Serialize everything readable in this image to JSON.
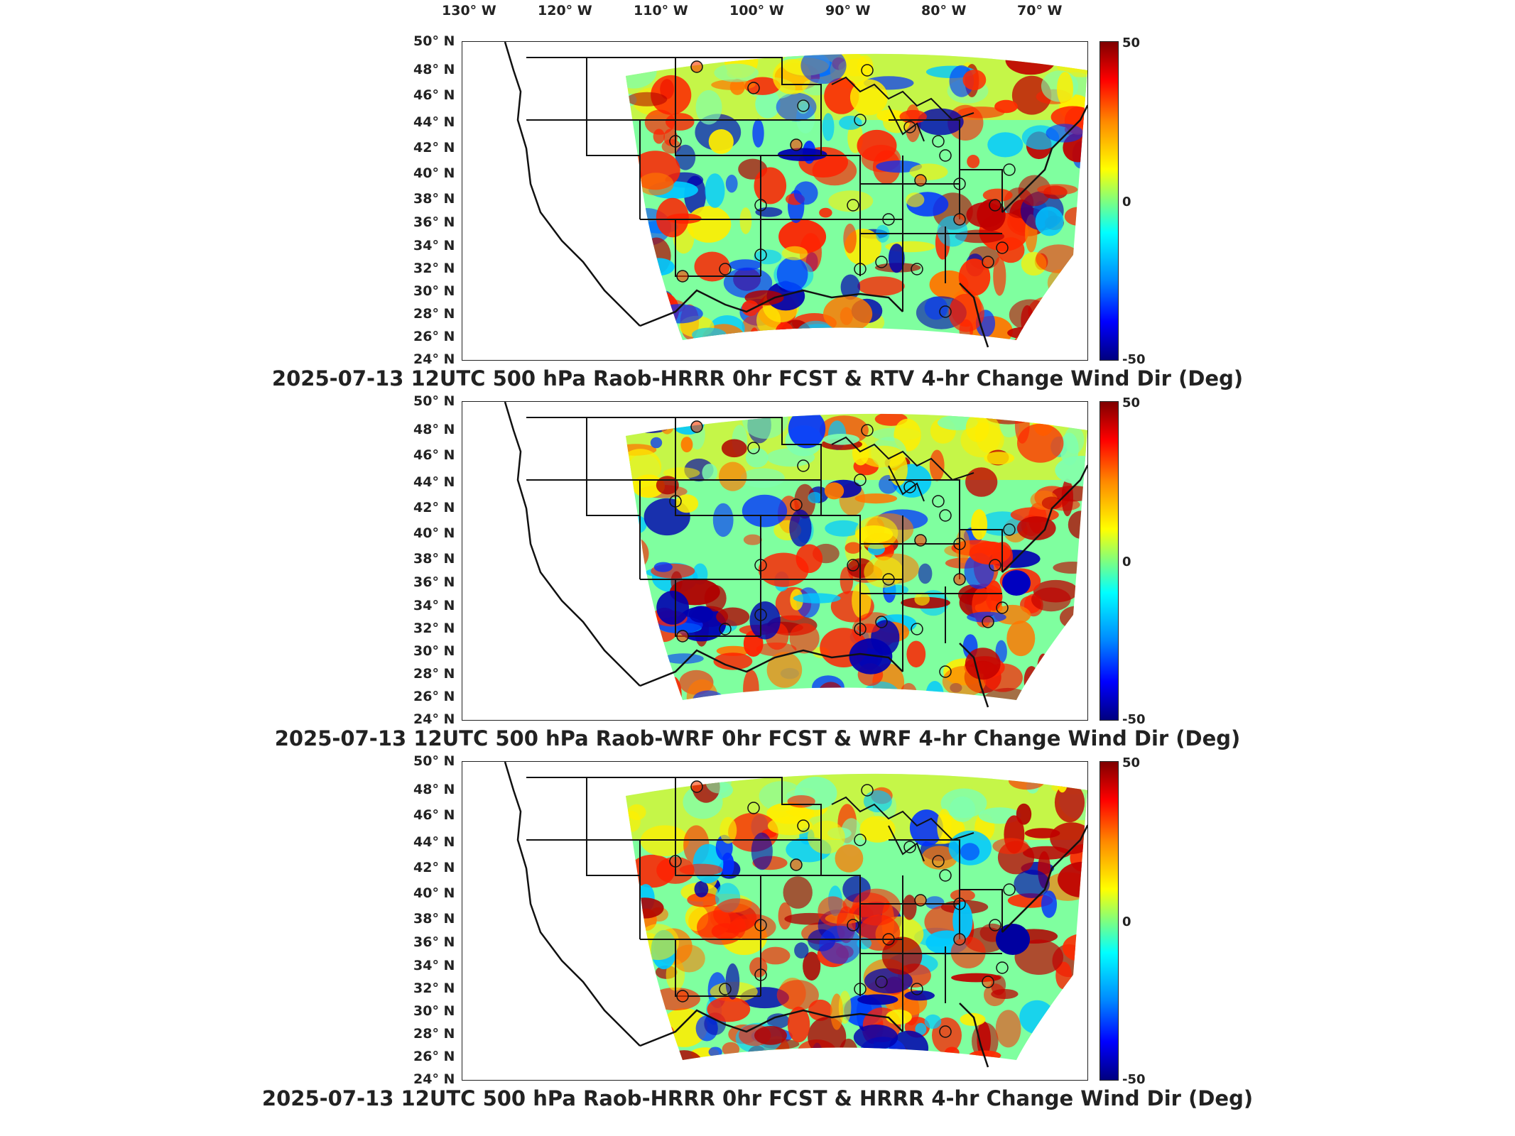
{
  "lon_labels": [
    "130° W",
    "120° W",
    "110° W",
    "100° W",
    "90° W",
    "80° W",
    "70° W"
  ],
  "lat_labels": [
    "50° N",
    "48° N",
    "46° N",
    "44° N",
    "42° N",
    "40° N",
    "38° N",
    "36° N",
    "34° N",
    "32° N",
    "30° N",
    "28° N",
    "26° N",
    "24° N"
  ],
  "colorbar": {
    "max": "50",
    "mid": "0",
    "min": "-50"
  },
  "panels": [
    {
      "title": "2025-07-13 12UTC 500 hPa Raob-HRRR 0hr FCST & RTV 4-hr Change Wind Dir (Deg)"
    },
    {
      "title": "2025-07-13 12UTC 500 hPa Raob-WRF 0hr FCST & WRF 4-hr Change Wind Dir (Deg)"
    },
    {
      "title": "2025-07-13 12UTC 500 hPa Raob-HRRR 0hr FCST & HRRR 4-hr Change Wind Dir (Deg)"
    }
  ],
  "colors": {
    "warm": "#ff2000",
    "cool": "#0030ff",
    "neutral": "#7fff9f",
    "yellow": "#ffee00"
  }
}
